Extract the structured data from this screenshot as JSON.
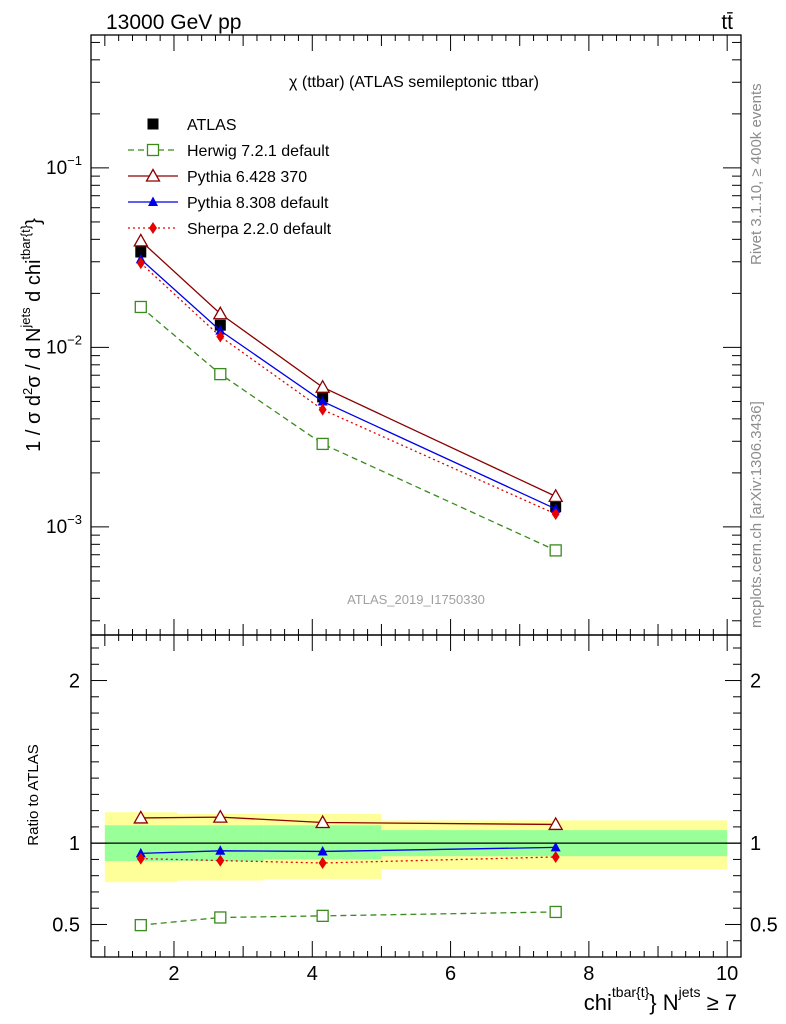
{
  "header": {
    "left": "13000 GeV pp",
    "right": "tt̄"
  },
  "side_labels": {
    "rivet": "Rivet 3.1.10, ≥ 400k events",
    "mcplots": "mcplots.cern.ch [arXiv:1306.3436]"
  },
  "chart_data": [
    {
      "type": "line",
      "title": "χ (ttbar) (ATLAS semileptonic ttbar)",
      "watermark": "ATLAS_2019_I1750330",
      "ylabel": "1 / σ d²σ / d N^jets d chi^tbar{t}",
      "yscale": "log",
      "ylim": [
        0.00025,
        0.55
      ],
      "xlim": [
        0.8,
        10.2
      ],
      "yticks": [
        {
          "value": 0.1,
          "base": "10",
          "exp": "−1"
        },
        {
          "value": 0.01,
          "base": "10",
          "exp": "−2"
        },
        {
          "value": 0.001,
          "base": "10",
          "exp": "−3"
        }
      ],
      "legend_position": "top-left",
      "series": [
        {
          "name": "ATLAS",
          "color": "#000000",
          "marker": "square-filled",
          "x": [
            1.52,
            2.67,
            4.15,
            7.52
          ],
          "y": [
            0.034,
            0.0133,
            0.0053,
            0.0013
          ]
        },
        {
          "name": "Herwig 7.2.1 default",
          "color": "#3a8a1e",
          "marker": "square-open",
          "dash": "dashed",
          "x": [
            1.52,
            2.67,
            4.15,
            7.52
          ],
          "y": [
            0.0168,
            0.0071,
            0.0029,
            0.00074
          ]
        },
        {
          "name": "Pythia 6.428 370",
          "color": "#8b0000",
          "marker": "triangle-open",
          "dash": "solid",
          "x": [
            1.52,
            2.67,
            4.15,
            7.52
          ],
          "y": [
            0.0392,
            0.0154,
            0.006,
            0.00148
          ]
        },
        {
          "name": "Pythia 8.308 default",
          "color": "#0000e6",
          "marker": "triangle-filled",
          "dash": "solid",
          "x": [
            1.52,
            2.67,
            4.15,
            7.52
          ],
          "y": [
            0.031,
            0.0124,
            0.005,
            0.00126
          ]
        },
        {
          "name": "Sherpa 2.2.0 default",
          "color": "#e60000",
          "marker": "diamond-filled",
          "dash": "dotted",
          "x": [
            1.52,
            2.67,
            4.15,
            7.52
          ],
          "y": [
            0.0295,
            0.0115,
            0.0045,
            0.00118
          ]
        }
      ]
    },
    {
      "type": "line",
      "ylabel": "Ratio to ATLAS",
      "xlabel_main": "chi",
      "xlabel_sup": "tbar{t}",
      "xlabel_mid": "} N",
      "xlabel_sup2": "jets",
      "xlabel_tail": " ≥ 7",
      "ylim": [
        0.3,
        2.28
      ],
      "xlim": [
        0.8,
        10.2
      ],
      "xticks": [
        2,
        4,
        6,
        8,
        10
      ],
      "yticks": [
        0.5,
        1,
        2
      ],
      "bands": [
        {
          "x0": 1.0,
          "x1": 2.05,
          "yellow": [
            0.76,
            1.19
          ],
          "green": [
            0.89,
            1.11
          ]
        },
        {
          "x0": 2.05,
          "x1": 3.3,
          "yellow": [
            0.77,
            1.18
          ],
          "green": [
            0.89,
            1.11
          ]
        },
        {
          "x0": 3.3,
          "x1": 5.0,
          "yellow": [
            0.78,
            1.18
          ],
          "green": [
            0.9,
            1.11
          ]
        },
        {
          "x0": 5.0,
          "x1": 10.0,
          "yellow": [
            0.84,
            1.14
          ],
          "green": [
            0.92,
            1.08
          ]
        }
      ],
      "series": [
        {
          "name": "Herwig 7.2.1 default",
          "color": "#3a8a1e",
          "marker": "square-open",
          "dash": "dashed",
          "x": [
            1.52,
            2.67,
            4.15,
            7.52
          ],
          "y": [
            0.496,
            0.543,
            0.553,
            0.577
          ]
        },
        {
          "name": "Pythia 6.428 370",
          "color": "#8b0000",
          "marker": "triangle-open",
          "dash": "solid",
          "x": [
            1.52,
            2.67,
            4.15,
            7.52
          ],
          "y": [
            1.155,
            1.16,
            1.127,
            1.115
          ]
        },
        {
          "name": "Pythia 8.308 default",
          "color": "#0000e6",
          "marker": "triangle-filled",
          "dash": "solid",
          "x": [
            1.52,
            2.67,
            4.15,
            7.52
          ],
          "y": [
            0.937,
            0.953,
            0.949,
            0.974
          ]
        },
        {
          "name": "Sherpa 2.2.0 default",
          "color": "#e60000",
          "marker": "diamond-filled",
          "dash": "dotted",
          "x": [
            1.52,
            2.67,
            4.15,
            7.52
          ],
          "y": [
            0.905,
            0.893,
            0.878,
            0.915
          ]
        }
      ]
    }
  ]
}
